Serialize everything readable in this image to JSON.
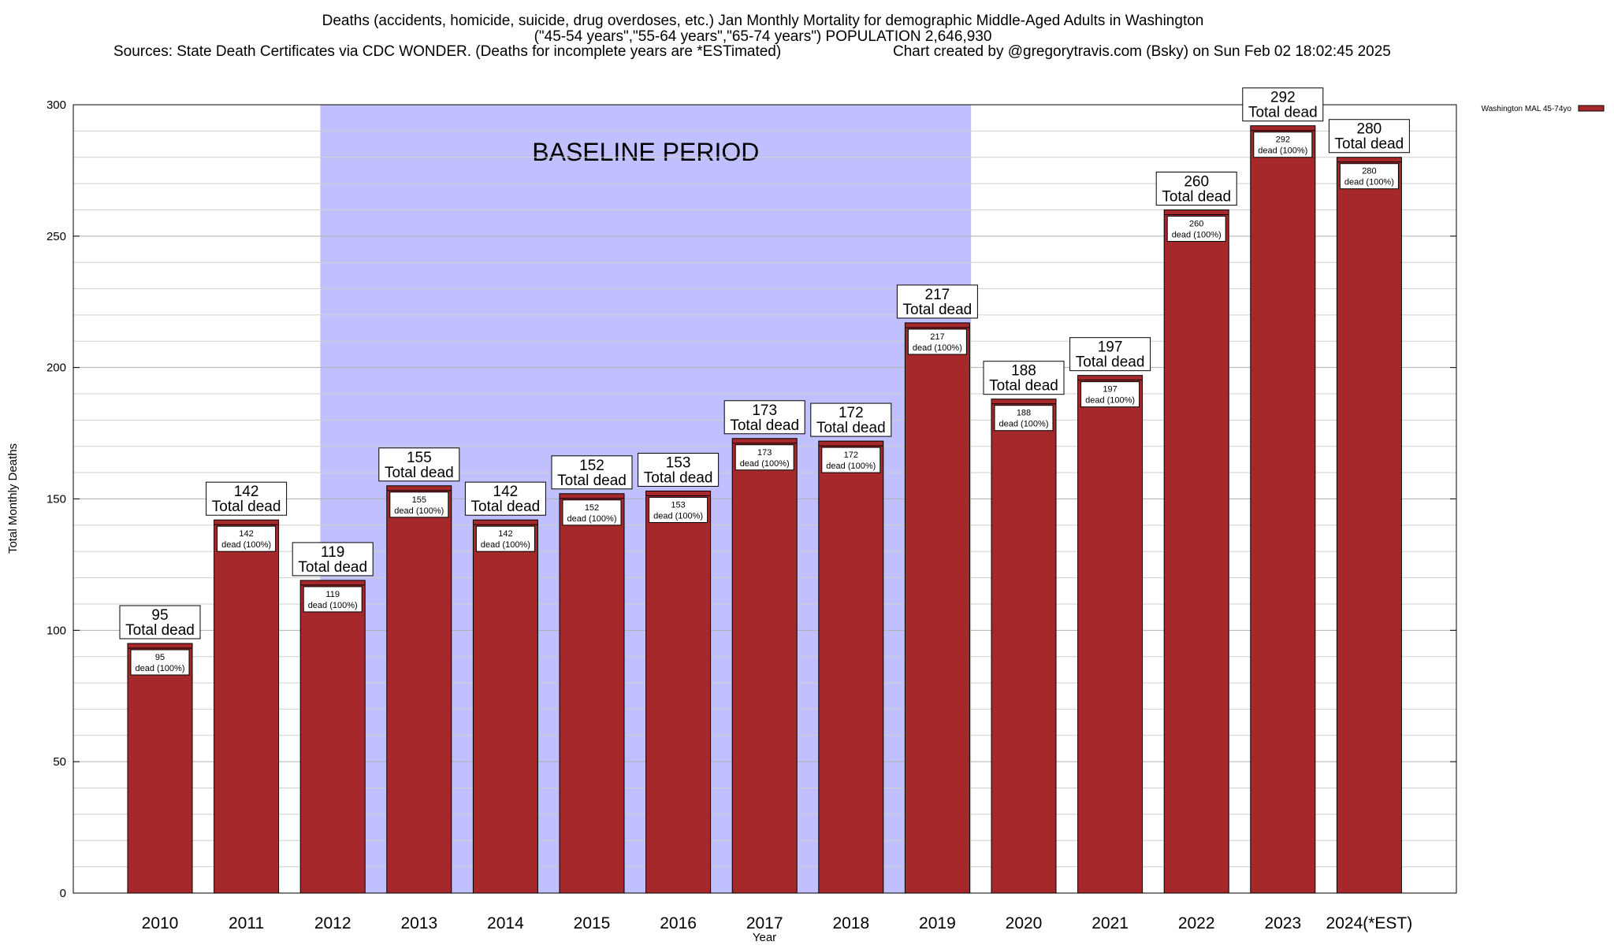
{
  "header": {
    "title_line1": "Deaths (accidents, homicide, suicide, drug overdoses, etc.) Jan Monthly Mortality for demographic Middle-Aged Adults in Washington",
    "title_line2": "(\"45-54 years\",\"55-64 years\",\"65-74 years\") POPULATION 2,646,930",
    "sources": "Sources: State Death Certificates via CDC WONDER. (Deaths for incomplete years are *ESTimated)",
    "created_by": "Chart created by @gregorytravis.com (Bsky) on Sun Feb 02 18:02:45 2025"
  },
  "chart_data": {
    "type": "bar",
    "title": "Deaths (accidents, homicide, suicide, drug overdoses, etc.) Jan Monthly Mortality for demographic Middle-Aged Adults in Washington",
    "xlabel": "Year",
    "ylabel": "Total Monthly Deaths",
    "ylim": [
      0,
      300
    ],
    "yticks": [
      0,
      50,
      100,
      150,
      200,
      250,
      300
    ],
    "grid": true,
    "legend_placement": "top-right",
    "categories": [
      "2010",
      "2011",
      "2012",
      "2013",
      "2014",
      "2015",
      "2016",
      "2017",
      "2018",
      "2019",
      "2020",
      "2021",
      "2022",
      "2023",
      "2024(*EST)"
    ],
    "series": [
      {
        "name": "Washington MAL 45-74yo",
        "color": "#a5292a",
        "values": [
          95,
          142,
          119,
          155,
          142,
          152,
          153,
          173,
          172,
          217,
          188,
          197,
          260,
          292,
          280
        ]
      }
    ],
    "total_label": "Total dead",
    "inner_label": "dead (100%)",
    "baseline": {
      "label": "BASELINE PERIOD",
      "start": "2012",
      "end": "2019",
      "color": "#c0c0ff"
    }
  }
}
